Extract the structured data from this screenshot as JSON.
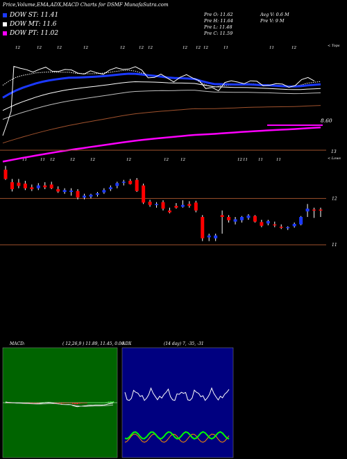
{
  "header": {
    "title": "Price,Volume,EMA,ADX,MACD Charts for DSMF MunafaSutra.com"
  },
  "legend": [
    {
      "label": "DOW ST: 11.41",
      "color": "#1b39ff"
    },
    {
      "label": "DOW MT: 11.6",
      "color": "#ffffff"
    },
    {
      "label": "DOW PT: 11.02",
      "color": "#ff00ff"
    }
  ],
  "stats": {
    "pre_o": "Pre  O: 11.62",
    "pre_h": "Pre  H: 11.64",
    "pre_l": "Pre  L: 11.48",
    "pre_c": "Pre  C: 11.59",
    "avg_v": "Avg V: 0.6  M",
    "pre_v": "Pre  V: 9 M"
  },
  "top_panel": {
    "label": "< Tops",
    "level": "8.60",
    "top_marks": [
      "12",
      "12",
      "12",
      "12",
      "12",
      "12",
      "12",
      "12",
      "12",
      "12",
      "11",
      "11",
      "12"
    ],
    "bottom_marks": [
      "11",
      "11",
      "12",
      "12",
      "12",
      "12",
      "12",
      "12",
      "12",
      "11",
      "11",
      "11"
    ],
    "bottom_number": "13"
  },
  "candle_panel": {
    "label": "< Lows",
    "ticks": [
      "12",
      "11"
    ]
  },
  "macd": {
    "label": "MACD:",
    "values": "( 12,26,9 ) 11.89, 11.45, 0.06"
  },
  "adx": {
    "label": "ADX",
    "values": "(14  day) 7, -35, -31"
  },
  "chart_data": [
    {
      "type": "candlestick",
      "title": "",
      "ylabel": "",
      "yticks": [
        12,
        11
      ],
      "ylim": [
        10.7,
        12.8
      ],
      "series": [
        {
          "o": 12.62,
          "h": 12.7,
          "l": 12.4,
          "c": 12.42
        },
        {
          "o": 12.35,
          "h": 12.42,
          "l": 12.15,
          "c": 12.2
        },
        {
          "o": 12.34,
          "h": 12.42,
          "l": 12.22,
          "c": 12.27
        },
        {
          "o": 12.32,
          "h": 12.38,
          "l": 12.18,
          "c": 12.22
        },
        {
          "o": 12.24,
          "h": 12.3,
          "l": 12.16,
          "c": 12.2
        },
        {
          "o": 12.22,
          "h": 12.33,
          "l": 12.18,
          "c": 12.28
        },
        {
          "o": 12.28,
          "h": 12.35,
          "l": 12.2,
          "c": 12.24
        },
        {
          "o": 12.3,
          "h": 12.36,
          "l": 12.2,
          "c": 12.22
        },
        {
          "o": 12.2,
          "h": 12.26,
          "l": 12.12,
          "c": 12.15
        },
        {
          "o": 12.14,
          "h": 12.22,
          "l": 12.1,
          "c": 12.18
        },
        {
          "o": 12.14,
          "h": 12.22,
          "l": 12.06,
          "c": 12.17
        },
        {
          "o": 12.16,
          "h": 12.2,
          "l": 11.98,
          "c": 12.02
        },
        {
          "o": 12.02,
          "h": 12.1,
          "l": 11.98,
          "c": 12.06
        },
        {
          "o": 12.04,
          "h": 12.1,
          "l": 12.0,
          "c": 12.08
        },
        {
          "o": 12.08,
          "h": 12.14,
          "l": 12.04,
          "c": 12.11
        },
        {
          "o": 12.13,
          "h": 12.22,
          "l": 12.1,
          "c": 12.18
        },
        {
          "o": 12.2,
          "h": 12.28,
          "l": 12.16,
          "c": 12.24
        },
        {
          "o": 12.27,
          "h": 12.36,
          "l": 12.22,
          "c": 12.33
        },
        {
          "o": 12.34,
          "h": 12.4,
          "l": 12.28,
          "c": 12.36
        },
        {
          "o": 12.38,
          "h": 12.42,
          "l": 12.3,
          "c": 12.31
        },
        {
          "o": 12.4,
          "h": 12.44,
          "l": 12.14,
          "c": 12.16
        },
        {
          "o": 12.28,
          "h": 12.32,
          "l": 11.88,
          "c": 11.91
        },
        {
          "o": 11.93,
          "h": 11.97,
          "l": 11.82,
          "c": 11.86
        },
        {
          "o": 11.86,
          "h": 11.92,
          "l": 11.8,
          "c": 11.88
        },
        {
          "o": 11.92,
          "h": 11.96,
          "l": 11.74,
          "c": 11.78
        },
        {
          "o": 11.74,
          "h": 11.8,
          "l": 11.68,
          "c": 11.7
        },
        {
          "o": 11.84,
          "h": 11.9,
          "l": 11.78,
          "c": 11.8
        },
        {
          "o": 11.82,
          "h": 11.96,
          "l": 11.8,
          "c": 11.86
        },
        {
          "o": 11.88,
          "h": 11.94,
          "l": 11.8,
          "c": 11.84
        },
        {
          "o": 11.91,
          "h": 11.95,
          "l": 11.7,
          "c": 11.74
        },
        {
          "o": 11.6,
          "h": 11.64,
          "l": 11.08,
          "c": 11.14
        },
        {
          "o": 11.16,
          "h": 11.24,
          "l": 11.08,
          "c": 11.2
        },
        {
          "o": 11.14,
          "h": 11.24,
          "l": 11.08,
          "c": 11.2
        },
        {
          "o": 11.64,
          "h": 11.74,
          "l": 11.24,
          "c": 11.6
        },
        {
          "o": 11.6,
          "h": 11.64,
          "l": 11.48,
          "c": 11.53
        },
        {
          "o": 11.5,
          "h": 11.6,
          "l": 11.44,
          "c": 11.55
        },
        {
          "o": 11.53,
          "h": 11.62,
          "l": 11.48,
          "c": 11.6
        },
        {
          "o": 11.58,
          "h": 11.66,
          "l": 11.54,
          "c": 11.63
        },
        {
          "o": 11.62,
          "h": 11.64,
          "l": 11.48,
          "c": 11.5
        },
        {
          "o": 11.49,
          "h": 11.54,
          "l": 11.38,
          "c": 11.41
        },
        {
          "o": 11.46,
          "h": 11.54,
          "l": 11.42,
          "c": 11.51
        },
        {
          "o": 11.44,
          "h": 11.5,
          "l": 11.38,
          "c": 11.42
        },
        {
          "o": 11.39,
          "h": 11.44,
          "l": 11.34,
          "c": 11.37
        },
        {
          "o": 11.36,
          "h": 11.4,
          "l": 11.32,
          "c": 11.38
        },
        {
          "o": 11.4,
          "h": 11.48,
          "l": 11.37,
          "c": 11.45
        },
        {
          "o": 11.44,
          "h": 11.62,
          "l": 11.42,
          "c": 11.6
        },
        {
          "o": 11.72,
          "h": 11.88,
          "l": 11.6,
          "c": 11.78
        },
        {
          "o": 11.76,
          "h": 11.8,
          "l": 11.58,
          "c": 11.74
        },
        {
          "o": 11.76,
          "h": 11.8,
          "l": 11.6,
          "c": 11.74
        }
      ]
    }
  ],
  "colors": {
    "up": "#1b39ff",
    "down": "#ff0000",
    "ema_fast": "#1b39ff",
    "ema_slow": "#ff00ff",
    "ema_brown": "#a0522d",
    "macd_bg": "#006400",
    "adx_bg": "#000080"
  }
}
